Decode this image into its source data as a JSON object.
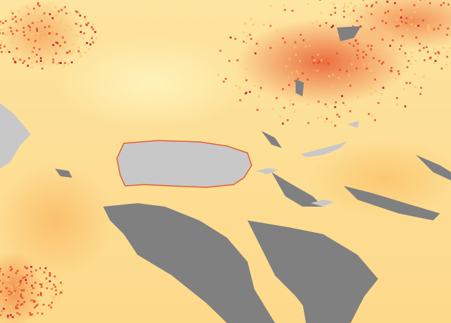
{
  "map": {
    "colors": {
      "land": "#c8c8c8",
      "no_data": "#808080",
      "low": "#fff2b8",
      "mid": "#fdc46a",
      "high": "#e8452a",
      "max": "#b0002a"
    }
  }
}
